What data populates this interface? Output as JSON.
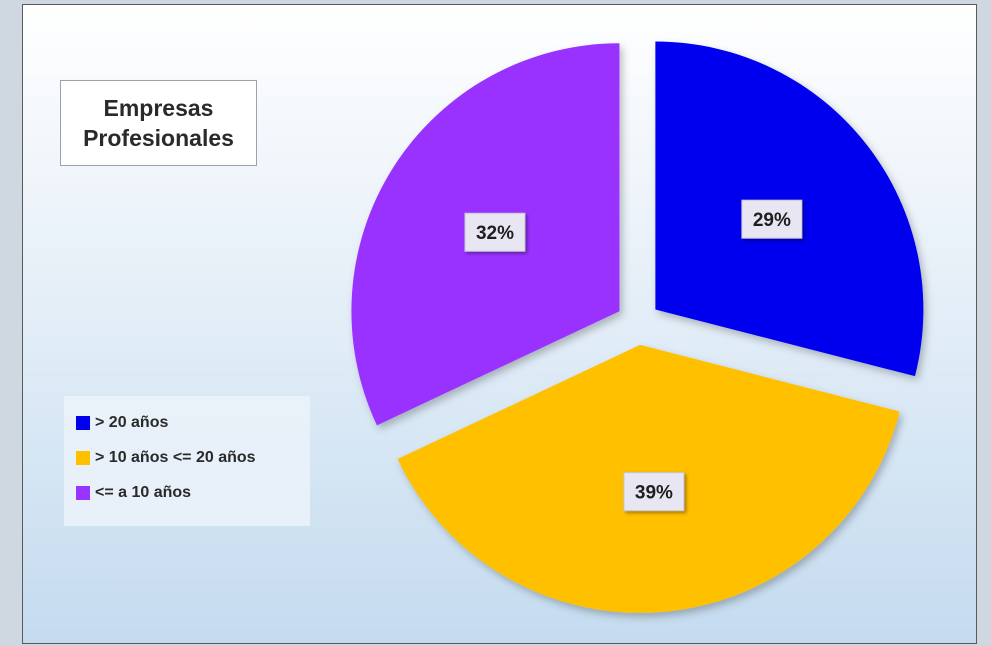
{
  "chart_data": {
    "type": "pie",
    "title": [
      "Empresas",
      "Profesionales"
    ],
    "categories": [
      "> 20 años",
      "> 10 años <= 20 años",
      "<= a 10 años"
    ],
    "values": [
      29,
      39,
      32
    ],
    "value_labels": [
      "29%",
      "39%",
      "32%"
    ],
    "colors": [
      "#0000ee",
      "#ffc000",
      "#9933ff"
    ],
    "exploded": true,
    "legend_position": "left"
  }
}
